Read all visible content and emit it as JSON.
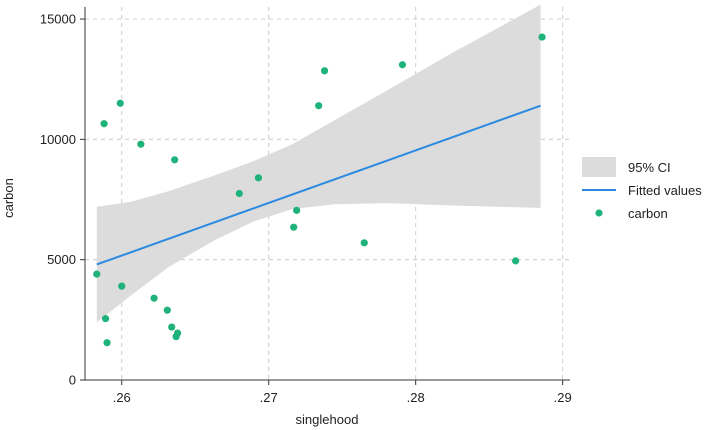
{
  "chart_data": {
    "type": "scatter",
    "xlabel": "singlehood",
    "ylabel": "carbon",
    "xlim": [
      0.2575,
      0.2905
    ],
    "ylim": [
      0,
      15500
    ],
    "grid": true,
    "legend_position": "right",
    "x_ticks": [
      {
        "value": 0.26,
        "label": ".26"
      },
      {
        "value": 0.27,
        "label": ".27"
      },
      {
        "value": 0.28,
        "label": ".28"
      },
      {
        "value": 0.29,
        "label": ".29"
      }
    ],
    "y_ticks": [
      {
        "value": 0,
        "label": "0"
      },
      {
        "value": 5000,
        "label": "5000"
      },
      {
        "value": 10000,
        "label": "10000"
      },
      {
        "value": 15000,
        "label": "15000"
      }
    ],
    "legend": {
      "ci_label": "95% CI",
      "fit_label": "Fitted values",
      "scatter_label": "carbon"
    },
    "colors": {
      "points": "#1fb27a",
      "fit_line": "#2b8ae0",
      "ci_band": "#dcdcdc",
      "grid": "#cccccc",
      "axis": "#333333"
    },
    "fit_line": {
      "x": [
        0.2583,
        0.2885
      ],
      "y": [
        4800,
        11400
      ]
    },
    "ci_band": {
      "x": [
        0.2583,
        0.2606,
        0.2632,
        0.2663,
        0.269,
        0.2716,
        0.2745,
        0.2781,
        0.2825,
        0.2855,
        0.2885
      ],
      "lower": [
        2400,
        3500,
        4700,
        5800,
        6600,
        7100,
        7300,
        7350,
        7250,
        7200,
        7150
      ],
      "upper": [
        7200,
        7400,
        7850,
        8500,
        9100,
        9800,
        10800,
        12050,
        13600,
        14600,
        15600
      ]
    },
    "points": {
      "x": [
        0.2583,
        0.2588,
        0.2589,
        0.259,
        0.2599,
        0.26,
        0.2613,
        0.2622,
        0.2631,
        0.2634,
        0.2636,
        0.2637,
        0.2638,
        0.268,
        0.2693,
        0.2717,
        0.2719,
        0.2734,
        0.2738,
        0.2765,
        0.2791,
        0.2868,
        0.2886
      ],
      "y": [
        4400,
        10650,
        2550,
        1550,
        11500,
        3900,
        9800,
        3400,
        2900,
        2200,
        9150,
        1800,
        1950,
        7750,
        8400,
        6350,
        7050,
        11400,
        12850,
        5700,
        13100,
        4950,
        14250
      ]
    }
  }
}
